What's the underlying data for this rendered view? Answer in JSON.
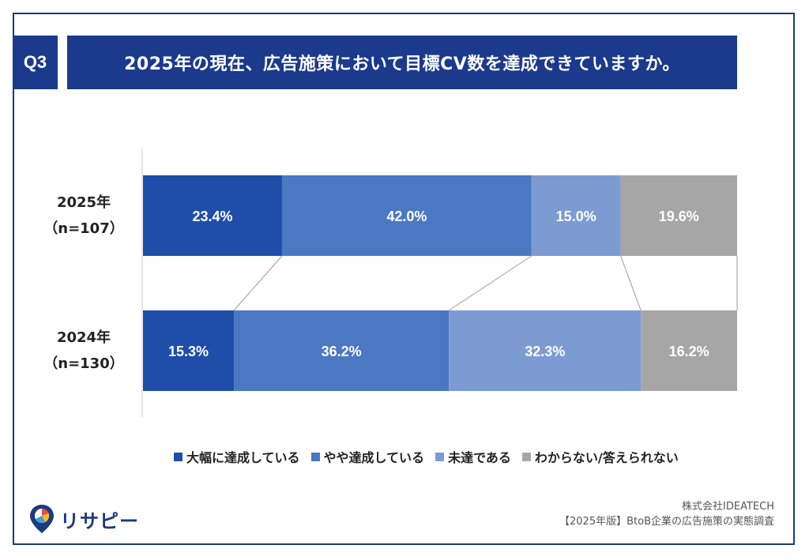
{
  "header": {
    "badge": "Q3",
    "title": "2025年の現在、広告施策において目標CV数を達成できていますか。"
  },
  "chart_data": {
    "type": "bar",
    "orientation": "horizontal",
    "stacked": true,
    "normalized": true,
    "categories": [
      {
        "line1": "2025年",
        "line2": "（n=107）"
      },
      {
        "line1": "2024年",
        "line2": "（n=130）"
      }
    ],
    "series": [
      {
        "name": "大幅に達成している",
        "color": "#1f4eaa",
        "values": [
          23.4,
          15.3
        ],
        "labels": [
          "23.4%",
          "15.3%"
        ]
      },
      {
        "name": "やや達成している",
        "color": "#4a78c2",
        "values": [
          42.0,
          36.2
        ],
        "labels": [
          "42.0%",
          "36.2%"
        ]
      },
      {
        "name": "未達である",
        "color": "#7c9bd2",
        "values": [
          15.0,
          32.3
        ],
        "labels": [
          "15.0%",
          "32.3%"
        ]
      },
      {
        "name": "わからない/答えられない",
        "color": "#a6a6a6",
        "values": [
          19.6,
          16.2
        ],
        "labels": [
          "19.6%",
          "16.2%"
        ]
      }
    ],
    "connector_lines": true,
    "legend_position": "bottom"
  },
  "footer": {
    "logo_text": "リサピー",
    "source_line1": "株式会社IDEATECH",
    "source_line2": "【2025年版】BtoB企業の広告施策の実態調査"
  }
}
